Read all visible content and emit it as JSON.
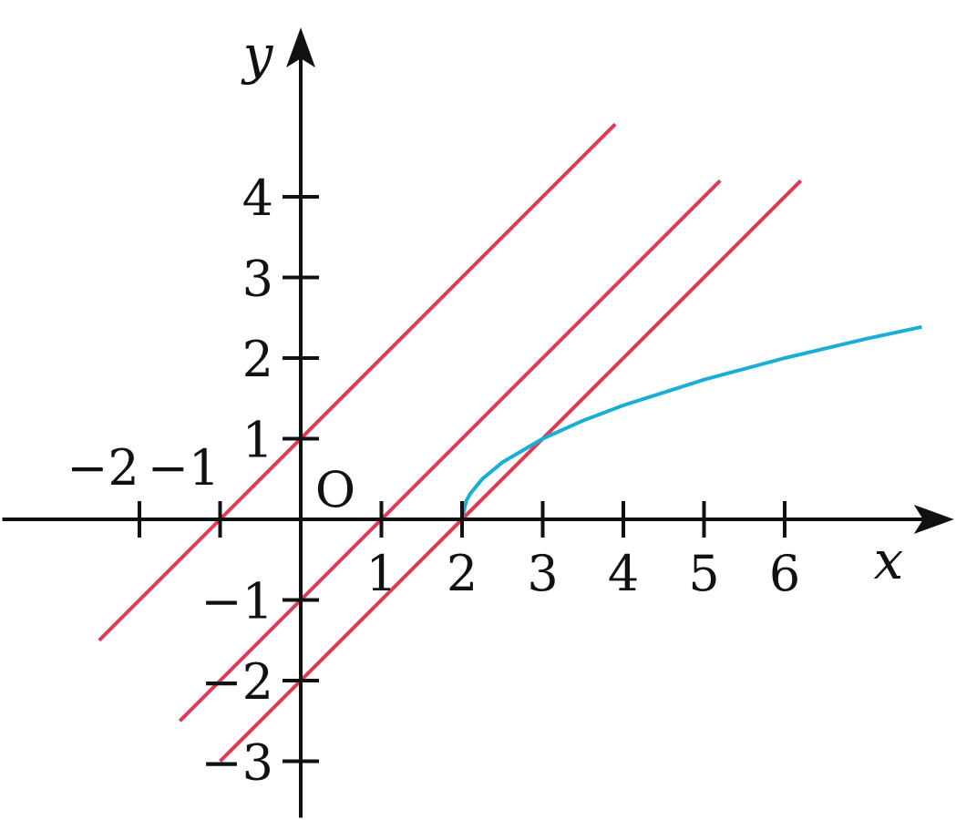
{
  "chart_data": {
    "type": "line",
    "xlabel": "x",
    "ylabel": "y",
    "origin_label": "O",
    "xlim": [
      -3.7,
      8.1
    ],
    "ylim": [
      -3.7,
      6.1
    ],
    "x_ticks": [
      -2,
      -1,
      1,
      2,
      3,
      4,
      5,
      6
    ],
    "x_tick_labels": [
      "−2",
      "−1",
      "1",
      "2",
      "3",
      "4",
      "5",
      "6"
    ],
    "y_ticks": [
      -3,
      -2,
      -1,
      1,
      2,
      3,
      4
    ],
    "y_tick_labels": [
      "−3",
      "−2",
      "−1",
      "1",
      "2",
      "3",
      "4"
    ],
    "grid": false,
    "series": [
      {
        "type": "line",
        "color": "#e03a55",
        "x": [
          -2.5,
          3.9
        ],
        "y": [
          -1.5,
          4.9
        ]
      },
      {
        "type": "line",
        "color": "#e03a55",
        "x": [
          -1.5,
          5.2
        ],
        "y": [
          -2.5,
          4.2
        ]
      },
      {
        "type": "line",
        "color": "#e03a55",
        "x": [
          -1.0,
          6.2
        ],
        "y": [
          -3.0,
          4.2
        ]
      },
      {
        "type": "curve",
        "color": "#19aed6",
        "x": [
          2,
          2.05,
          2.1,
          2.25,
          2.5,
          3,
          3.5,
          4,
          5,
          6,
          7,
          7.7
        ],
        "y": [
          0,
          0.224,
          0.316,
          0.5,
          0.707,
          1,
          1.225,
          1.414,
          1.732,
          2,
          2.236,
          2.387
        ]
      }
    ]
  }
}
